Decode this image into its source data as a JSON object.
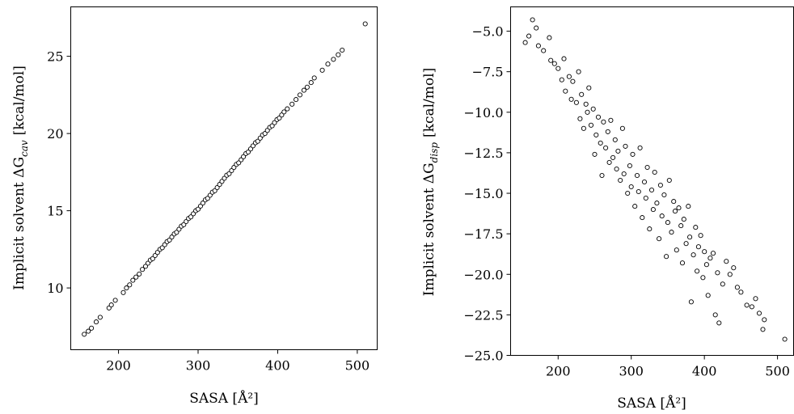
{
  "chart_data": [
    {
      "type": "scatter",
      "xlabel": "SASA [Å²]",
      "ylabel": "Implicit solvent ΔG_cav [kcal/mol]",
      "ylabel_main": "Implicit solvent ΔG",
      "ylabel_sub": "cav",
      "ylabel_unit": "[kcal/mol]",
      "xlim": [
        140,
        525
      ],
      "ylim": [
        6.0,
        28.2
      ],
      "xticks": [
        200,
        300,
        400,
        500
      ],
      "yticks": [
        10,
        15,
        20,
        25
      ],
      "grid": false,
      "model": {
        "slope": 0.0572,
        "intercept": -2.0
      },
      "series": [
        {
          "points": [
            [
              157,
              7.0
            ],
            [
              162,
              7.2
            ],
            [
              166,
              7.4
            ],
            [
              172,
              7.8
            ],
            [
              177,
              8.1
            ],
            [
              188,
              8.7
            ],
            [
              191,
              8.9
            ],
            [
              196,
              9.2
            ],
            [
              206,
              9.7
            ],
            [
              210,
              10.0
            ],
            [
              214,
              10.2
            ],
            [
              218,
              10.5
            ],
            [
              222,
              10.7
            ],
            [
              226,
              10.9
            ],
            [
              230,
              11.2
            ],
            [
              234,
              11.4
            ],
            [
              237,
              11.6
            ],
            [
              240,
              11.8
            ],
            [
              243,
              11.9
            ],
            [
              246,
              12.1
            ],
            [
              249,
              12.3
            ],
            [
              252,
              12.5
            ],
            [
              255,
              12.6
            ],
            [
              258,
              12.8
            ],
            [
              261,
              13.0
            ],
            [
              264,
              13.1
            ],
            [
              267,
              13.3
            ],
            [
              270,
              13.5
            ],
            [
              273,
              13.6
            ],
            [
              276,
              13.8
            ],
            [
              279,
              14.0
            ],
            [
              282,
              14.1
            ],
            [
              285,
              14.3
            ],
            [
              288,
              14.5
            ],
            [
              291,
              14.6
            ],
            [
              294,
              14.8
            ],
            [
              297,
              15.0
            ],
            [
              300,
              15.1
            ],
            [
              303,
              15.3
            ],
            [
              306,
              15.5
            ],
            [
              309,
              15.7
            ],
            [
              312,
              15.8
            ],
            [
              315,
              16.0
            ],
            [
              318,
              16.2
            ],
            [
              321,
              16.3
            ],
            [
              324,
              16.5
            ],
            [
              327,
              16.7
            ],
            [
              330,
              16.9
            ],
            [
              333,
              17.1
            ],
            [
              336,
              17.3
            ],
            [
              339,
              17.4
            ],
            [
              342,
              17.6
            ],
            [
              345,
              17.8
            ],
            [
              348,
              18.0
            ],
            [
              351,
              18.1
            ],
            [
              354,
              18.3
            ],
            [
              357,
              18.5
            ],
            [
              360,
              18.7
            ],
            [
              363,
              18.8
            ],
            [
              366,
              19.0
            ],
            [
              369,
              19.2
            ],
            [
              372,
              19.4
            ],
            [
              375,
              19.5
            ],
            [
              378,
              19.7
            ],
            [
              381,
              19.9
            ],
            [
              384,
              20.0
            ],
            [
              387,
              20.2
            ],
            [
              390,
              20.4
            ],
            [
              393,
              20.5
            ],
            [
              396,
              20.7
            ],
            [
              399,
              20.9
            ],
            [
              402,
              21.0
            ],
            [
              405,
              21.2
            ],
            [
              408,
              21.4
            ],
            [
              412,
              21.6
            ],
            [
              418,
              21.9
            ],
            [
              423,
              22.2
            ],
            [
              428,
              22.5
            ],
            [
              433,
              22.8
            ],
            [
              437,
              23.0
            ],
            [
              442,
              23.3
            ],
            [
              446,
              23.6
            ],
            [
              456,
              24.1
            ],
            [
              463,
              24.5
            ],
            [
              470,
              24.8
            ],
            [
              476,
              25.1
            ],
            [
              481,
              25.4
            ],
            [
              510,
              27.1
            ]
          ]
        }
      ]
    },
    {
      "type": "scatter",
      "xlabel": "SASA [Å²]",
      "ylabel": "Implicit solvent ΔG_disp [kcal/mol]",
      "ylabel_main": "Implicit solvent ΔG",
      "ylabel_sub": "disp",
      "ylabel_unit": "[kcal/mol]",
      "xlim": [
        135,
        522
      ],
      "ylim": [
        -25.0,
        -3.5
      ],
      "xticks": [
        200,
        300,
        400,
        500
      ],
      "yticks": [
        -5.0,
        -7.5,
        -10.0,
        -12.5,
        -15.0,
        -17.5,
        -20.0,
        -22.5,
        -25.0
      ],
      "ytick_labels": [
        "−5.0",
        "−7.5",
        "−10.0",
        "−12.5",
        "−15.0",
        "−17.5",
        "−20.0",
        "−22.5",
        "−25.0"
      ],
      "grid": false,
      "series": [
        {
          "points": [
            [
              155,
              -5.7
            ],
            [
              160,
              -5.3
            ],
            [
              165,
              -4.3
            ],
            [
              170,
              -4.8
            ],
            [
              173,
              -5.9
            ],
            [
              180,
              -6.2
            ],
            [
              188,
              -5.4
            ],
            [
              190,
              -6.8
            ],
            [
              195,
              -7.0
            ],
            [
              200,
              -7.3
            ],
            [
              205,
              -8.0
            ],
            [
              208,
              -6.7
            ],
            [
              210,
              -8.7
            ],
            [
              215,
              -7.8
            ],
            [
              218,
              -9.2
            ],
            [
              220,
              -8.1
            ],
            [
              225,
              -9.4
            ],
            [
              228,
              -7.5
            ],
            [
              230,
              -10.4
            ],
            [
              232,
              -8.9
            ],
            [
              235,
              -11.0
            ],
            [
              238,
              -9.5
            ],
            [
              240,
              -10.0
            ],
            [
              242,
              -8.5
            ],
            [
              245,
              -10.8
            ],
            [
              248,
              -9.8
            ],
            [
              250,
              -12.6
            ],
            [
              252,
              -11.4
            ],
            [
              255,
              -10.3
            ],
            [
              258,
              -11.9
            ],
            [
              260,
              -13.9
            ],
            [
              262,
              -10.6
            ],
            [
              265,
              -12.2
            ],
            [
              268,
              -11.2
            ],
            [
              270,
              -13.1
            ],
            [
              272,
              -10.5
            ],
            [
              275,
              -12.8
            ],
            [
              278,
              -11.7
            ],
            [
              280,
              -13.5
            ],
            [
              282,
              -12.4
            ],
            [
              285,
              -14.2
            ],
            [
              288,
              -11.0
            ],
            [
              290,
              -13.8
            ],
            [
              292,
              -12.1
            ],
            [
              295,
              -15.0
            ],
            [
              298,
              -13.3
            ],
            [
              300,
              -14.6
            ],
            [
              302,
              -12.6
            ],
            [
              305,
              -15.8
            ],
            [
              308,
              -13.9
            ],
            [
              310,
              -14.9
            ],
            [
              312,
              -12.2
            ],
            [
              315,
              -16.5
            ],
            [
              318,
              -14.3
            ],
            [
              320,
              -15.3
            ],
            [
              322,
              -13.4
            ],
            [
              325,
              -17.2
            ],
            [
              328,
              -14.8
            ],
            [
              330,
              -16.0
            ],
            [
              332,
              -13.7
            ],
            [
              335,
              -15.6
            ],
            [
              338,
              -17.8
            ],
            [
              340,
              -14.5
            ],
            [
              342,
              -16.4
            ],
            [
              345,
              -15.1
            ],
            [
              348,
              -18.9
            ],
            [
              350,
              -16.8
            ],
            [
              352,
              -14.2
            ],
            [
              355,
              -17.4
            ],
            [
              358,
              -15.5
            ],
            [
              360,
              -16.1
            ],
            [
              362,
              -18.5
            ],
            [
              365,
              -15.9
            ],
            [
              368,
              -17.0
            ],
            [
              370,
              -19.3
            ],
            [
              372,
              -16.6
            ],
            [
              375,
              -18.1
            ],
            [
              378,
              -15.8
            ],
            [
              380,
              -17.7
            ],
            [
              382,
              -21.7
            ],
            [
              385,
              -18.8
            ],
            [
              388,
              -17.1
            ],
            [
              390,
              -19.8
            ],
            [
              392,
              -18.3
            ],
            [
              395,
              -17.6
            ],
            [
              398,
              -20.2
            ],
            [
              400,
              -18.6
            ],
            [
              403,
              -19.4
            ],
            [
              405,
              -21.3
            ],
            [
              408,
              -19.0
            ],
            [
              412,
              -18.7
            ],
            [
              415,
              -22.5
            ],
            [
              418,
              -19.9
            ],
            [
              420,
              -23.0
            ],
            [
              425,
              -20.6
            ],
            [
              430,
              -19.2
            ],
            [
              435,
              -20.0
            ],
            [
              440,
              -19.6
            ],
            [
              445,
              -20.8
            ],
            [
              450,
              -21.1
            ],
            [
              458,
              -21.9
            ],
            [
              465,
              -22.0
            ],
            [
              470,
              -21.5
            ],
            [
              475,
              -22.4
            ],
            [
              480,
              -23.4
            ],
            [
              482,
              -22.8
            ],
            [
              510,
              -24.0
            ]
          ]
        }
      ]
    }
  ]
}
